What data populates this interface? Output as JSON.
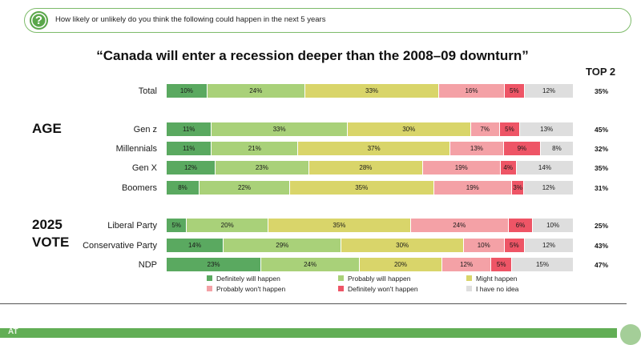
{
  "question": {
    "icon": "question-icon",
    "text": "How likely or unlikely do you think the following could happen in the next 5 years"
  },
  "chart_data": {
    "type": "bar",
    "orientation": "horizontal-stacked-100",
    "title": "“Canada will enter a recession deeper than the 2008–09 downturn”",
    "top2_header": "TOP 2",
    "groups": {
      "age": "AGE",
      "vote": "2025 VOTE"
    },
    "series": [
      {
        "name": "Definitely will happen",
        "color": "#5aa960"
      },
      {
        "name": "Probably will happen",
        "color": "#a9d179"
      },
      {
        "name": "Might happen",
        "color": "#d9d56a"
      },
      {
        "name": "Probably won't happen",
        "color": "#f4a1a6"
      },
      {
        "name": "Definitely won't happen",
        "color": "#ee5566"
      },
      {
        "name": "I have no idea",
        "color": "#dedede"
      }
    ],
    "rows": [
      {
        "label": "Total",
        "values": [
          10,
          24,
          33,
          16,
          5,
          12
        ],
        "top2": "35%"
      },
      {
        "label": "Gen z",
        "values": [
          11,
          33,
          30,
          7,
          5,
          13
        ],
        "top2": "45%"
      },
      {
        "label": "Millennials",
        "values": [
          11,
          21,
          37,
          13,
          9,
          8
        ],
        "top2": "32%"
      },
      {
        "label": "Gen X",
        "values": [
          12,
          23,
          28,
          19,
          4,
          14
        ],
        "top2": "35%"
      },
      {
        "label": "Boomers",
        "values": [
          8,
          22,
          35,
          19,
          3,
          12
        ],
        "top2": "31%"
      },
      {
        "label": "Liberal Party",
        "values": [
          5,
          20,
          35,
          24,
          6,
          10
        ],
        "top2": "25%"
      },
      {
        "label": "Conservative Party",
        "values": [
          14,
          29,
          30,
          10,
          5,
          12
        ],
        "top2": "43%"
      },
      {
        "label": "NDP",
        "values": [
          23,
          24,
          20,
          12,
          5,
          15
        ],
        "top2": "47%"
      }
    ],
    "value_suffix": "%",
    "legend_position": "bottom"
  }
}
